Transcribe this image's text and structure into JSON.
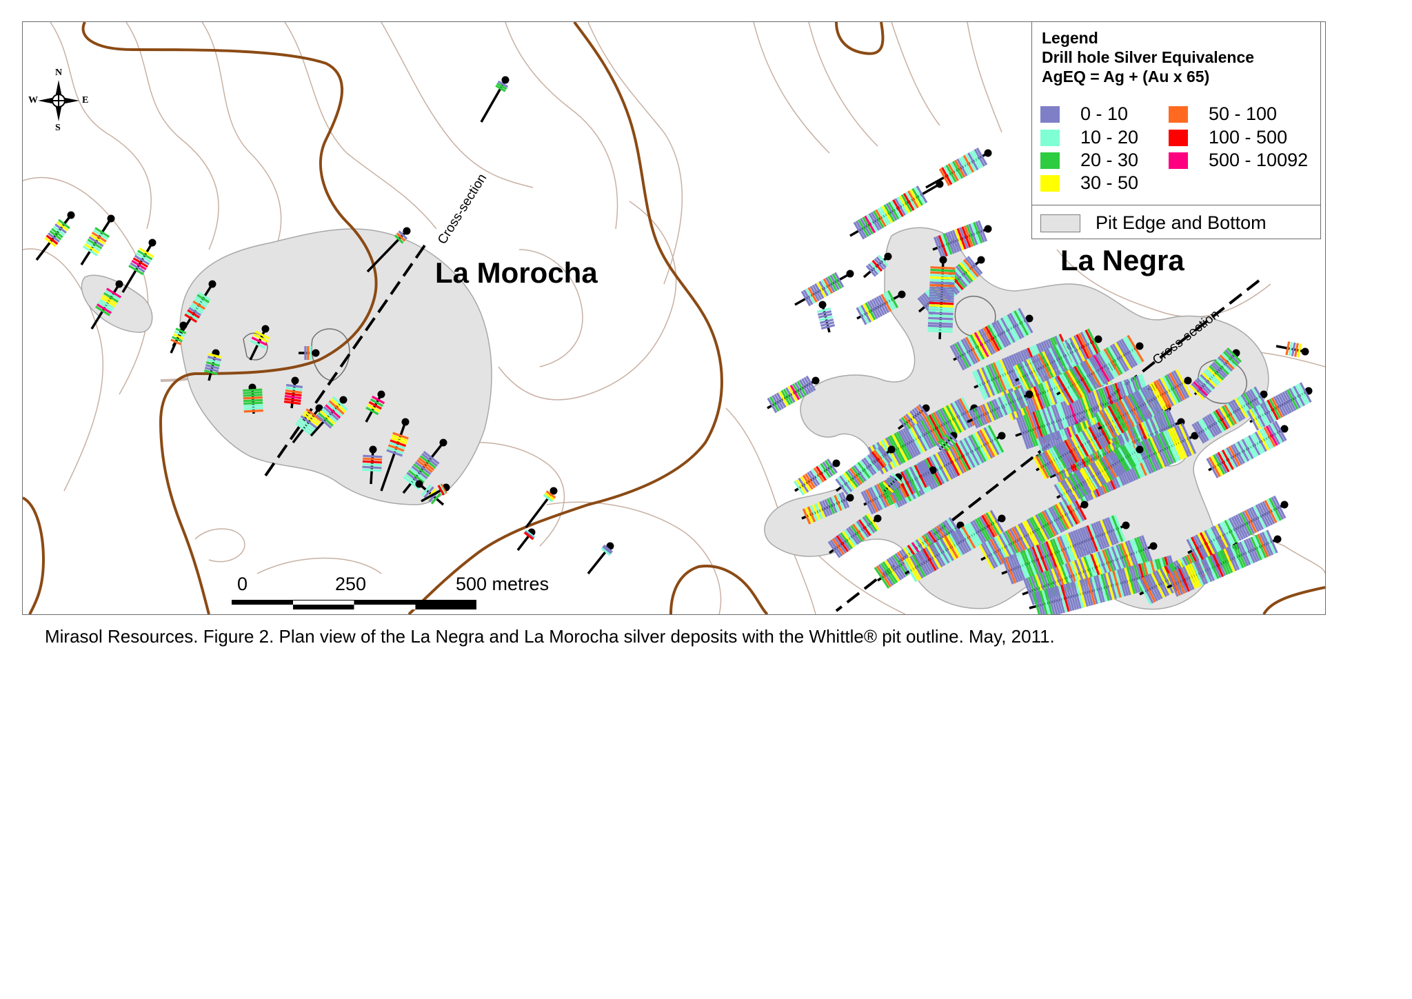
{
  "figure": {
    "caption": "Mirasol Resources. Figure 2. Plan view of the La Negra and La Morocha silver deposits with the Whittle® pit  outline. May, 2011."
  },
  "map": {
    "deposits": [
      {
        "label": "La Morocha"
      },
      {
        "label": "La Negra"
      }
    ],
    "cross_section_label": "Cross-section",
    "compass": {
      "north": "N",
      "south": "S",
      "east": "E",
      "west": "W"
    },
    "scale_bar": {
      "labels": [
        "0",
        "250",
        "500 metres"
      ]
    },
    "legend": {
      "title": "Legend",
      "subtitle": "Drill hole Silver Equivalence",
      "formula": "AgEQ = Ag + (Au x 65)",
      "classes": [
        {
          "range": "0 - 10",
          "color": "#7f7fc8"
        },
        {
          "range": "10 - 20",
          "color": "#7fffd4"
        },
        {
          "range": "20 - 30",
          "color": "#2ecc40"
        },
        {
          "range": "30 - 50",
          "color": "#ffff00"
        },
        {
          "range": "50 - 100",
          "color": "#ff6a20"
        },
        {
          "range": "100 - 500",
          "color": "#ff0000"
        },
        {
          "range": "500 - 10092",
          "color": "#ff0080"
        }
      ],
      "pit": {
        "label": "Pit Edge and Bottom",
        "color": "#e3e3e3"
      }
    },
    "colors": {
      "major_contour": "#8b4a14",
      "minor_contour": "#c8b0a2",
      "pit_fill": "#e3e3e3",
      "drill_trace": "#000000",
      "road": "#c8b8b0"
    }
  }
}
